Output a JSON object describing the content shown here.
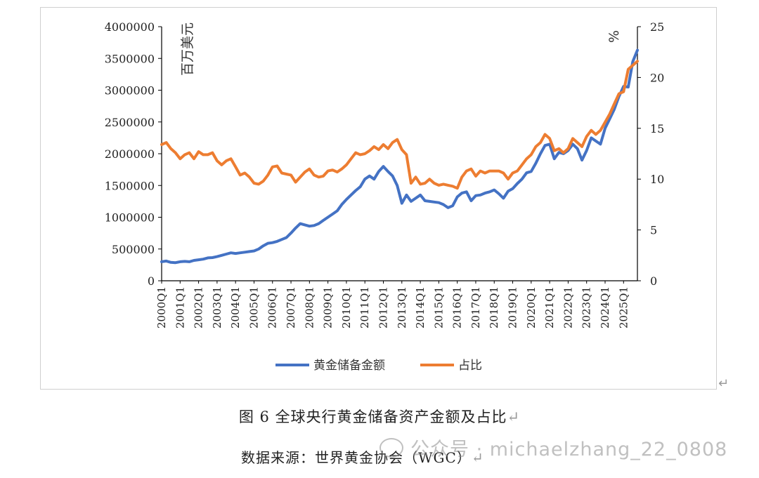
{
  "chart_data": {
    "type": "line",
    "title": "",
    "y_left_unit": "百万美元",
    "y_right_unit": "%",
    "y_left_range": [
      0,
      4000000
    ],
    "y_left_ticks": [
      "4000000",
      "3500000",
      "3000000",
      "2500000",
      "2000000",
      "1500000",
      "1000000",
      "500000",
      "0"
    ],
    "y_right_range": [
      0,
      25
    ],
    "y_right_ticks": [
      "25",
      "20",
      "15",
      "10",
      "5",
      "0"
    ],
    "x_tick_labels": [
      "2000Q1",
      "2001Q1",
      "2002Q1",
      "2003Q1",
      "2004Q1",
      "2005Q1",
      "2006Q1",
      "2007Q1",
      "2008Q1",
      "2009Q1",
      "2010Q1",
      "2011Q1",
      "2012Q1",
      "2013Q1",
      "2014Q1",
      "2015Q1",
      "2016Q1",
      "2017Q1",
      "2018Q1",
      "2019Q1",
      "2020Q1",
      "2021Q1",
      "2022Q1",
      "2023Q1",
      "2024Q1",
      "2025Q1"
    ],
    "legend_position": "bottom",
    "series": [
      {
        "name": "黄金储备金额",
        "axis": "left",
        "color": "#4472C4",
        "values": [
          300000,
          310000,
          290000,
          285000,
          300000,
          305000,
          300000,
          320000,
          330000,
          340000,
          360000,
          365000,
          380000,
          400000,
          420000,
          440000,
          430000,
          440000,
          450000,
          460000,
          470000,
          500000,
          550000,
          590000,
          600000,
          620000,
          650000,
          680000,
          750000,
          830000,
          900000,
          880000,
          860000,
          870000,
          900000,
          950000,
          1000000,
          1050000,
          1100000,
          1200000,
          1280000,
          1350000,
          1420000,
          1480000,
          1600000,
          1650000,
          1600000,
          1720000,
          1800000,
          1720000,
          1650000,
          1500000,
          1220000,
          1350000,
          1250000,
          1300000,
          1350000,
          1260000,
          1250000,
          1240000,
          1230000,
          1200000,
          1150000,
          1180000,
          1320000,
          1380000,
          1400000,
          1260000,
          1340000,
          1350000,
          1380000,
          1400000,
          1430000,
          1370000,
          1300000,
          1410000,
          1450000,
          1530000,
          1600000,
          1700000,
          1720000,
          1850000,
          2000000,
          2130000,
          2150000,
          1920000,
          2020000,
          2000000,
          2050000,
          2150000,
          2080000,
          1900000,
          2050000,
          2250000,
          2200000,
          2150000,
          2400000,
          2550000,
          2700000,
          2900000,
          3060000,
          3050000,
          3450000,
          3630000
        ],
        "values_note": ""
      },
      {
        "name": "占比",
        "axis": "right",
        "color": "#ED7D31",
        "values": [
          13.4,
          13.6,
          13.0,
          12.6,
          12.0,
          12.4,
          12.6,
          12.0,
          12.7,
          12.4,
          12.4,
          12.6,
          11.8,
          11.4,
          11.8,
          12.0,
          11.2,
          10.4,
          10.6,
          10.2,
          9.6,
          9.5,
          9.8,
          10.4,
          11.2,
          11.3,
          10.6,
          10.5,
          10.4,
          9.7,
          10.2,
          10.7,
          11.0,
          10.4,
          10.2,
          10.3,
          10.8,
          10.9,
          10.7,
          11.0,
          11.4,
          12.0,
          12.6,
          12.4,
          12.5,
          12.8,
          13.2,
          12.9,
          13.4,
          13.0,
          13.6,
          13.9,
          12.9,
          12.4,
          9.6,
          10.2,
          9.5,
          9.6,
          10.0,
          9.6,
          9.4,
          9.5,
          9.4,
          9.3,
          9.1,
          10.2,
          10.8,
          11.0,
          10.3,
          10.8,
          10.6,
          10.8,
          10.8,
          10.8,
          10.6,
          10.0,
          10.6,
          10.8,
          11.4,
          12.0,
          12.4,
          13.2,
          13.6,
          14.4,
          14.0,
          12.8,
          13.0,
          12.6,
          13.0,
          14.0,
          13.6,
          13.2,
          14.2,
          14.8,
          14.4,
          14.8,
          15.6,
          16.4,
          17.4,
          18.4,
          18.6,
          20.8,
          21.2,
          21.6
        ],
        "values_note": ""
      }
    ]
  },
  "caption": "图 6 全球央行黄金储备资产金额及占比",
  "source": "数据来源：世界黄金协会（WGC）",
  "watermark": "公众号 · michaelzhang_22_0808",
  "return_mark": "↵"
}
